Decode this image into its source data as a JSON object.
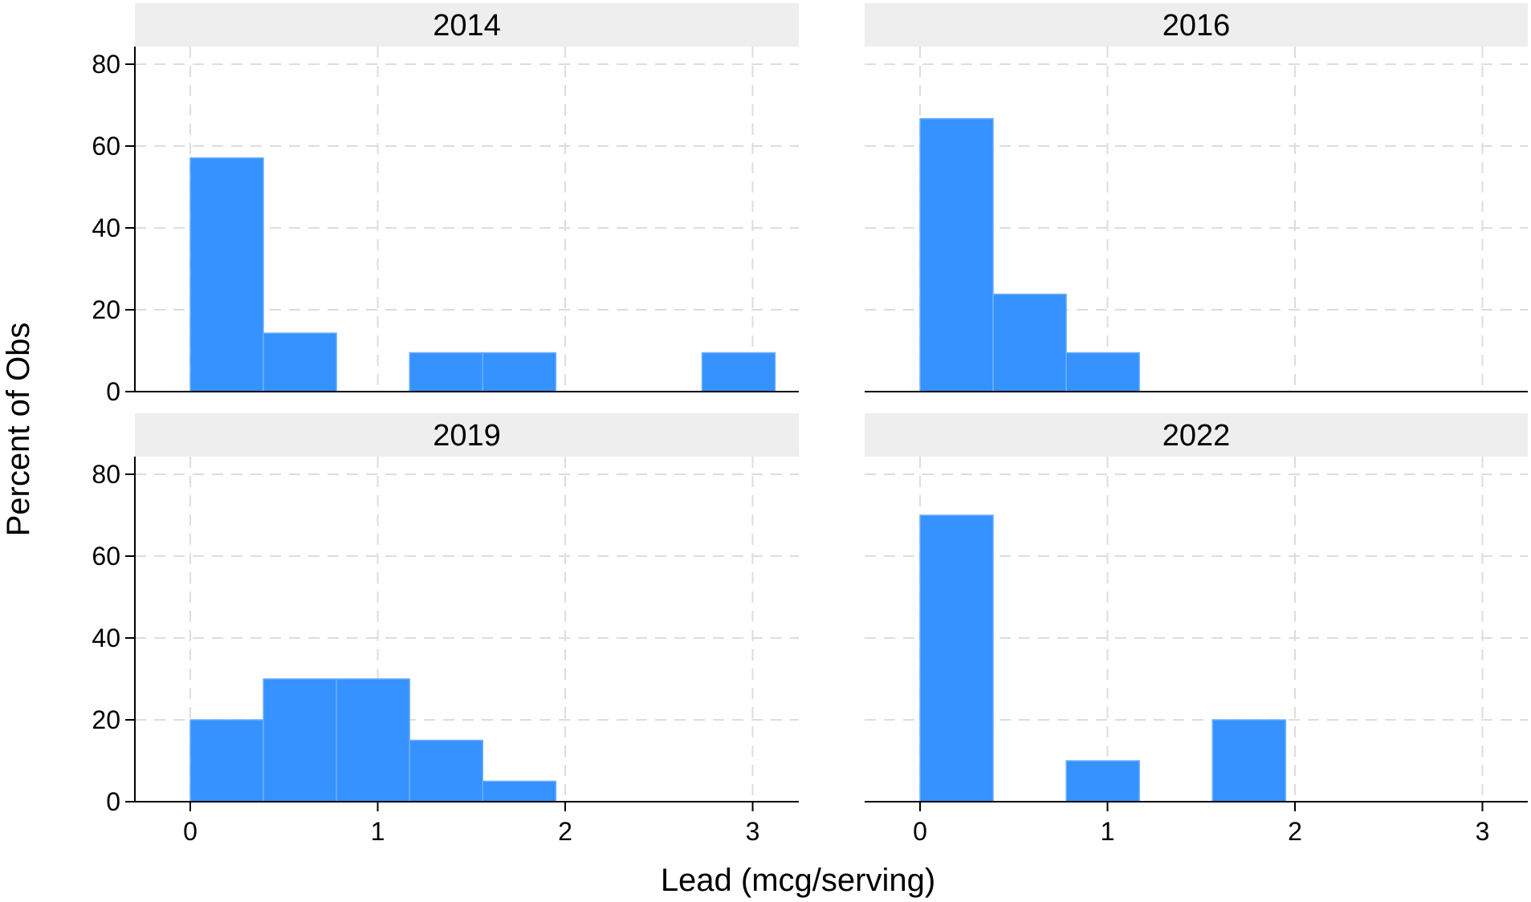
{
  "chart_data": {
    "type": "bar",
    "layout": "2x2 facet grid",
    "xlabel": "Lead (mcg/serving)",
    "ylabel": "Percent of Obs",
    "xlim": [
      -0.3,
      3.3
    ],
    "ylim": [
      0,
      84
    ],
    "xticks": [
      "0",
      "1",
      "2",
      "3"
    ],
    "yticks": [
      "0",
      "20",
      "40",
      "60",
      "80"
    ],
    "bin_width": 0.39,
    "grid": "dashed",
    "bar_color": "#3592FF",
    "bar_edge_color": "#6FB0FF",
    "strip_color": "#EEEEEE",
    "panels": [
      {
        "title": "2014",
        "bins": [
          {
            "x0": 0.0,
            "value": 57.1
          },
          {
            "x0": 0.39,
            "value": 14.3
          },
          {
            "x0": 1.17,
            "value": 9.5
          },
          {
            "x0": 1.56,
            "value": 9.5
          },
          {
            "x0": 2.73,
            "value": 9.5
          }
        ]
      },
      {
        "title": "2016",
        "bins": [
          {
            "x0": 0.0,
            "value": 66.7
          },
          {
            "x0": 0.39,
            "value": 23.8
          },
          {
            "x0": 0.78,
            "value": 9.5
          }
        ]
      },
      {
        "title": "2019",
        "bins": [
          {
            "x0": 0.0,
            "value": 20
          },
          {
            "x0": 0.39,
            "value": 30
          },
          {
            "x0": 0.78,
            "value": 30
          },
          {
            "x0": 1.17,
            "value": 15
          },
          {
            "x0": 1.56,
            "value": 5
          }
        ]
      },
      {
        "title": "2022",
        "bins": [
          {
            "x0": 0.0,
            "value": 70
          },
          {
            "x0": 0.78,
            "value": 10
          },
          {
            "x0": 1.56,
            "value": 20
          }
        ]
      }
    ]
  }
}
